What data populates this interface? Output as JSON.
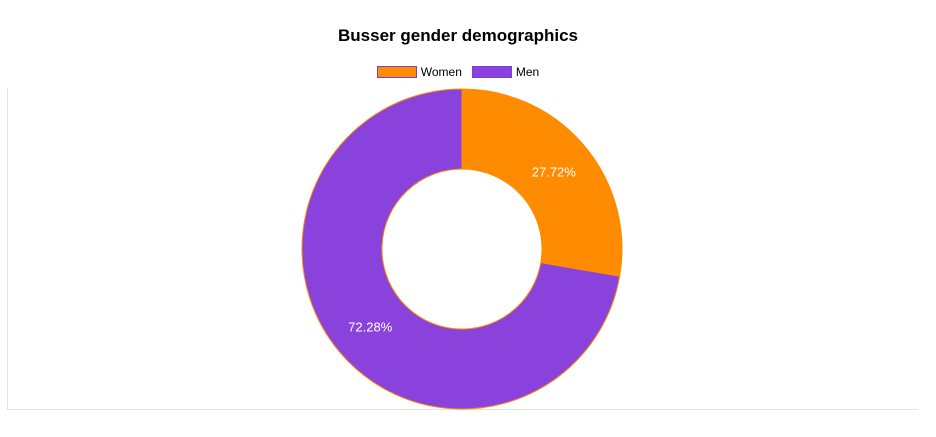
{
  "chart_data": {
    "type": "pie",
    "title": "Busser gender demographics",
    "categories": [
      "Women",
      "Men"
    ],
    "values": [
      27.72,
      72.28
    ],
    "labels": [
      "27.72%",
      "72.28%"
    ],
    "colors": [
      "#ff8c00",
      "#8a42dc"
    ],
    "slice_border_color": "#ff8c00",
    "donut": true,
    "legend_position": "top-center"
  }
}
